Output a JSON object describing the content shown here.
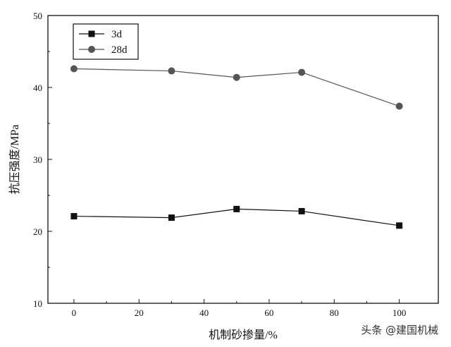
{
  "chart_data": {
    "type": "line",
    "title": "",
    "xlabel": "机制砂掺量/%",
    "ylabel": "抗压强度/MPa",
    "xlim": [
      -8,
      112
    ],
    "ylim": [
      10,
      50
    ],
    "x_ticks": [
      0,
      20,
      40,
      60,
      80,
      100
    ],
    "y_ticks": [
      10,
      20,
      30,
      40,
      50
    ],
    "grid": false,
    "legend_position": "top-left",
    "series": [
      {
        "name": "3d",
        "marker": "square",
        "color": "#111111",
        "x": [
          0,
          30,
          50,
          70,
          100
        ],
        "values": [
          22.1,
          21.9,
          23.1,
          22.8,
          20.8
        ]
      },
      {
        "name": "28d",
        "marker": "circle",
        "color": "#555555",
        "x": [
          0,
          30,
          50,
          70,
          100
        ],
        "values": [
          42.6,
          42.3,
          41.4,
          42.1,
          37.4
        ]
      }
    ]
  },
  "watermark": "头条 @建国机械"
}
